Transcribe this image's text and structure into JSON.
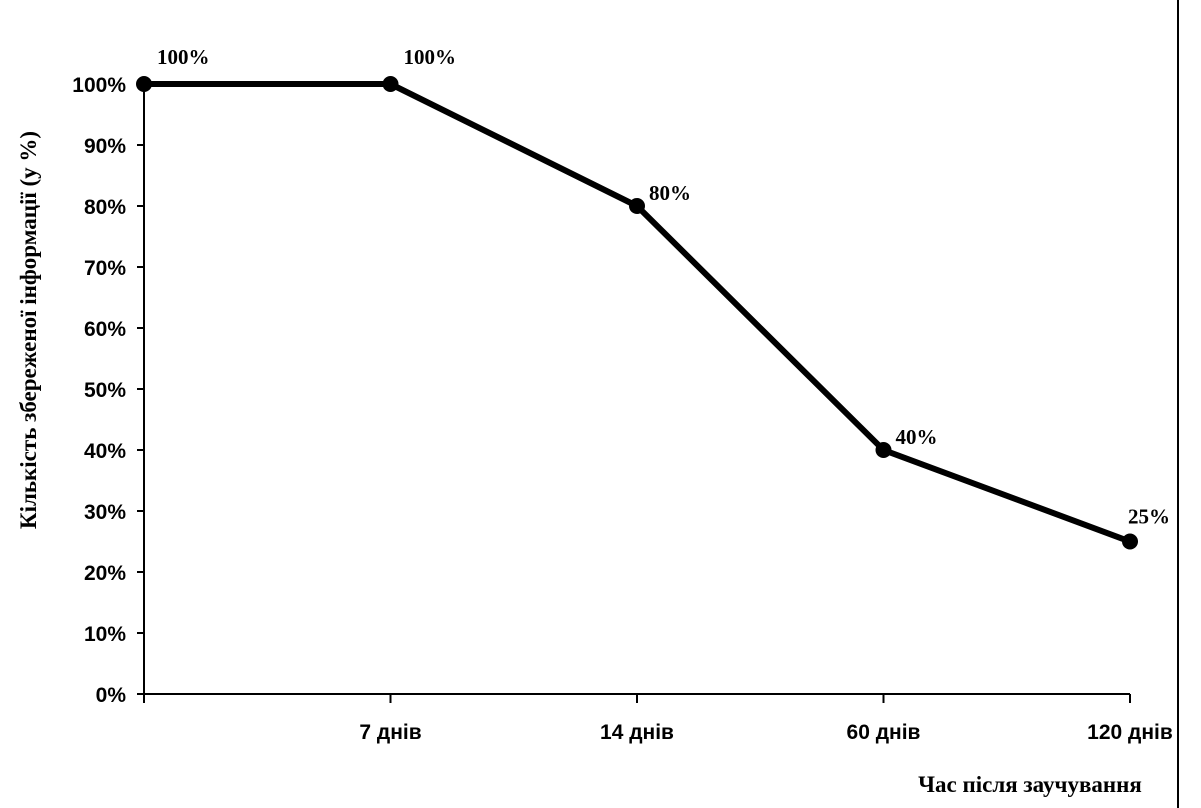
{
  "chart_data": {
    "type": "line",
    "x": [
      "",
      "7 днів",
      "14 днів",
      "60 днів",
      "120 днів"
    ],
    "series": [
      {
        "values": [
          100,
          100,
          80,
          40,
          25
        ]
      }
    ],
    "data_labels": [
      "100%",
      "100%",
      "80%",
      "40%",
      "25%"
    ],
    "y_ticks": [
      "0%",
      "10%",
      "20%",
      "30%",
      "40%",
      "50%",
      "60%",
      "70%",
      "80%",
      "90%",
      "100%"
    ],
    "ylim": [
      0,
      100
    ],
    "xlabel": "Час після заучування",
    "ylabel": "Кількість збереженої інформації (у %)",
    "title": "",
    "grid": false,
    "line_color": "#000000"
  }
}
